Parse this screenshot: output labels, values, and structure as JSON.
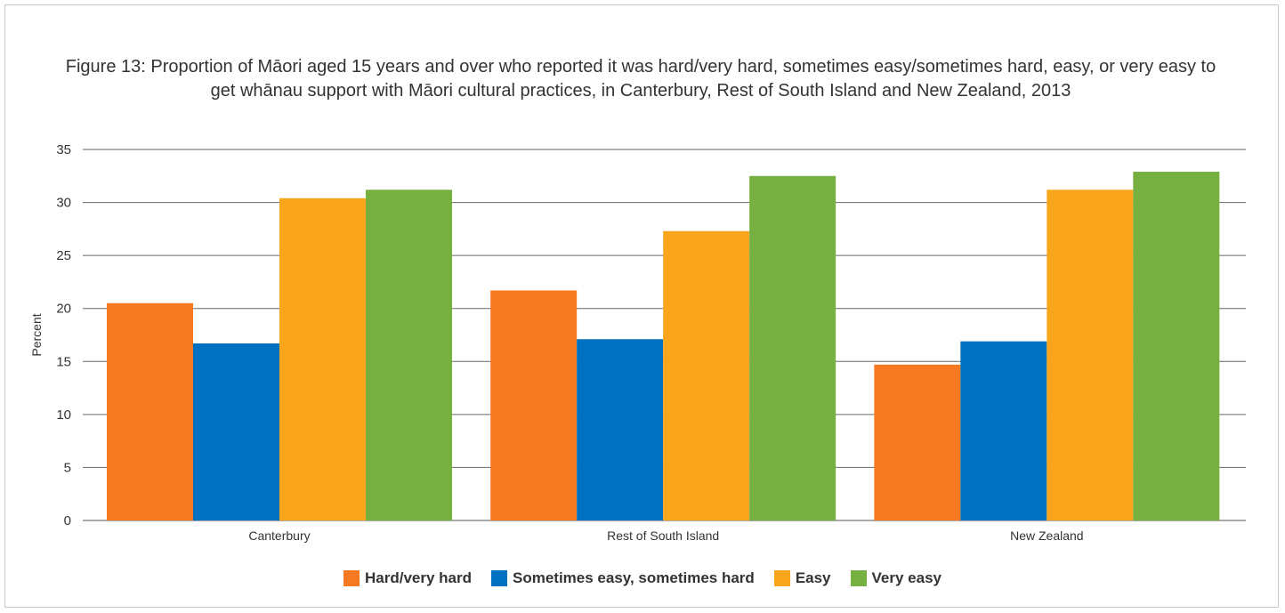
{
  "chart_data": {
    "type": "bar",
    "title": "Figure 13: Proportion of Māori aged 15 years and over who reported it was hard/very hard, sometimes easy/sometimes hard, easy, or very easy to get whānau support with Māori cultural practices, in Canterbury, Rest of South Island and New Zealand, 2013",
    "xlabel": "",
    "ylabel": "Percent",
    "ylim": [
      0,
      35
    ],
    "yticks": [
      0,
      5,
      10,
      15,
      20,
      25,
      30,
      35
    ],
    "grid": true,
    "legend_position": "bottom",
    "categories": [
      "Canterbury",
      "Rest of South Island",
      "New Zealand"
    ],
    "series": [
      {
        "name": "Hard/very hard",
        "color": "#f47920",
        "values": [
          20.5,
          21.7,
          14.7
        ]
      },
      {
        "name": "Sometimes easy, sometimes hard",
        "color": "#0070c0",
        "values": [
          16.7,
          17.1,
          16.9
        ]
      },
      {
        "name": "Easy",
        "color": "#f9a61c",
        "values": [
          30.4,
          27.3,
          31.2
        ]
      },
      {
        "name": "Very easy",
        "color": "#76b041",
        "values": [
          31.2,
          32.5,
          32.9
        ]
      }
    ]
  }
}
